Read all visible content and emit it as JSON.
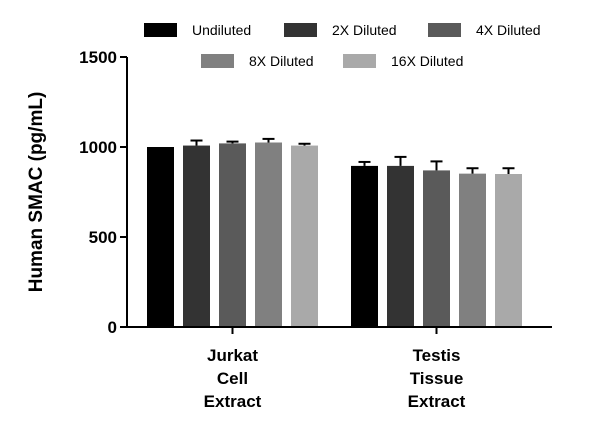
{
  "chart_data": {
    "type": "bar",
    "title": "",
    "xlabel": "",
    "ylabel": "Human SMAC (pg/mL)",
    "ylim": [
      0,
      1500
    ],
    "yticks": [
      "0",
      "500",
      "1000",
      "1500"
    ],
    "ytick_values": [
      0,
      500,
      1000,
      1500
    ],
    "categories": [
      [
        "Jurkat",
        "Cell",
        "Extract"
      ],
      [
        "Testis",
        "Tissue",
        "Extract"
      ]
    ],
    "legend_position": "top",
    "series": [
      {
        "name": "Undiluted",
        "color": "#000000",
        "values": [
          1000,
          895
        ],
        "errors": [
          0,
          22
        ]
      },
      {
        "name": "2X Diluted",
        "color": "#333333",
        "values": [
          1008,
          895
        ],
        "errors": [
          28,
          50
        ]
      },
      {
        "name": "4X Diluted",
        "color": "#5a5a5a",
        "values": [
          1020,
          870
        ],
        "errors": [
          10,
          50
        ]
      },
      {
        "name": "8X Diluted",
        "color": "#808080",
        "values": [
          1025,
          852
        ],
        "errors": [
          20,
          30
        ]
      },
      {
        "name": "16X Diluted",
        "color": "#a9a9a9",
        "values": [
          1008,
          850
        ],
        "errors": [
          10,
          32
        ]
      }
    ]
  }
}
